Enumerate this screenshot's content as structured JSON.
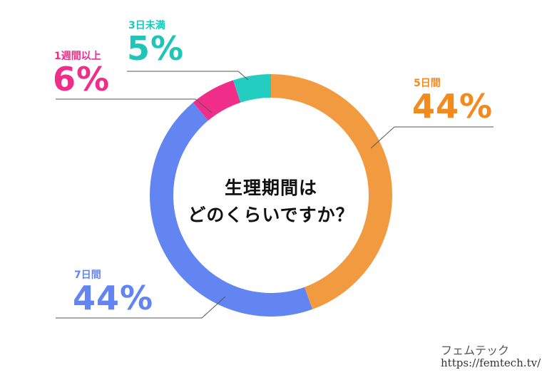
{
  "chart_data": {
    "type": "donut",
    "center_text": [
      "生理期間は",
      "どのくらいですか？"
    ],
    "slices": [
      {
        "label": "5日間",
        "value": 44,
        "value_label": "44%",
        "color": "#F29A3F"
      },
      {
        "label": "7日間",
        "value": 44,
        "value_label": "44%",
        "color": "#6385F2"
      },
      {
        "label": "1週間以上",
        "value": 6,
        "value_label": "6%",
        "color": "#F02E8A"
      },
      {
        "label": "3日未満",
        "value": 5,
        "value_label": "5%",
        "color": "#23CEC0"
      }
    ]
  },
  "brand": {
    "name": "フェムテック",
    "url": "https://femtech.tv/"
  }
}
